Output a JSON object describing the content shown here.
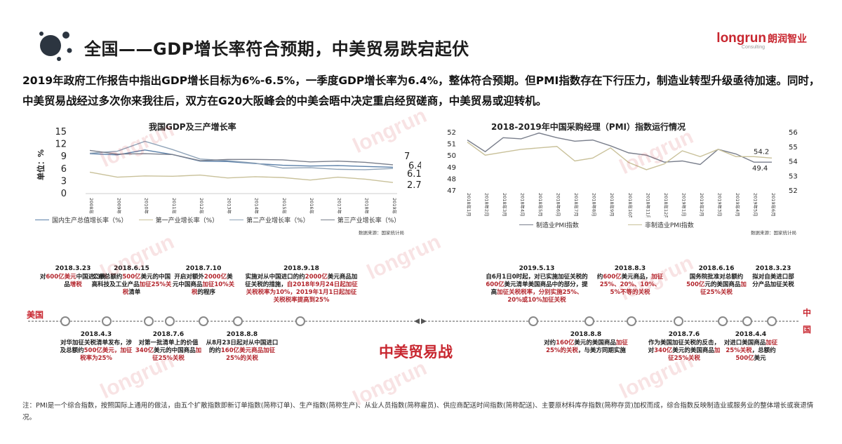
{
  "header": {
    "title": "全国——GDP增长率符合预期，中美贸易跌宕起伏",
    "logo_text": "longrun",
    "logo_cn": "朗润智业",
    "logo_sub": "Consulting"
  },
  "intro": "2019年政府工作报告中指出GDP增长目标为6%-6.5%，一季度GDP增长率为6.4%，整体符合预期。但PMI指数存在下行压力，制造业转型升级亟待加速。同时，中美贸易战经过多次你来我往后，双方在G20大阪峰会的中美会晤中决定重启经贸磋商，中美贸易或迎转机。",
  "gdp_chart": {
    "source": "数据来源：国家统计局"
  },
  "pmi_chart": {
    "source": "数据来源：国家统计局"
  },
  "chart_data": [
    {
      "type": "line",
      "title": "我国GDP及三产增长率",
      "ylabel": "单位：%",
      "ylim": [
        0,
        15
      ],
      "yticks": [
        0,
        3,
        6,
        9,
        12,
        15
      ],
      "categories": [
        "2008年",
        "2009年",
        "2010年",
        "2011年",
        "2012年",
        "2013年",
        "2014年",
        "2015年",
        "2016年",
        "2017年",
        "2018年",
        "2019年"
      ],
      "series": [
        {
          "name": "国内生产总值增长率（%）",
          "color": "#5a7fa8",
          "values": [
            9.7,
            9.4,
            10.6,
            9.5,
            7.9,
            7.8,
            7.3,
            6.9,
            6.7,
            6.8,
            6.6,
            6.4
          ]
        },
        {
          "name": "第一产业增长率（%）",
          "color": "#c9c19a",
          "values": [
            5.2,
            4.0,
            4.3,
            4.2,
            4.5,
            3.8,
            4.1,
            3.9,
            3.3,
            4.0,
            3.5,
            2.7
          ]
        },
        {
          "name": "第二产业增长率（%）",
          "color": "#8fa3b8",
          "values": [
            9.8,
            10.3,
            12.7,
            10.7,
            8.4,
            8.0,
            7.4,
            6.2,
            6.3,
            5.9,
            5.8,
            6.1
          ]
        },
        {
          "name": "第三产业增长率（%）",
          "color": "#7a7f8c",
          "values": [
            10.5,
            9.6,
            9.7,
            9.5,
            8.0,
            8.3,
            8.3,
            8.2,
            7.7,
            7.9,
            7.6,
            7.0
          ]
        }
      ],
      "end_labels": [
        "7",
        "6.4",
        "6.1",
        "2.7"
      ]
    },
    {
      "type": "line",
      "title": "2018-2019年中国采购经理（PMI）指数运行情况",
      "ylim_left": [
        47,
        52
      ],
      "yticks_left": [
        47,
        48,
        49,
        50,
        51,
        52
      ],
      "ylim_right": [
        52,
        56
      ],
      "yticks_right": [
        52,
        53,
        54,
        55,
        56
      ],
      "categories": [
        "2018年1月",
        "2018年2月",
        "2018年3月",
        "2018年4月",
        "2018年5月",
        "2018年6月",
        "2018年7月",
        "2018年8月",
        "2018年9月",
        "2018年10月",
        "2018年11月",
        "2018年12月",
        "2019年1月",
        "2019年2月",
        "2019年3月",
        "2019年4月",
        "2019年5月",
        "2019年6月"
      ],
      "series": [
        {
          "name": "制造业PMI指数",
          "axis": "left",
          "color": "#7a7f8c",
          "values": [
            51.3,
            50.3,
            51.5,
            51.4,
            51.9,
            51.5,
            51.2,
            51.3,
            50.8,
            50.2,
            50.0,
            49.4,
            49.5,
            49.2,
            50.5,
            50.1,
            49.4,
            49.4
          ]
        },
        {
          "name": "非制造业PMI指数",
          "axis": "right",
          "color": "#c9c19a",
          "values": [
            55.3,
            54.4,
            54.6,
            54.8,
            54.9,
            55.0,
            54.0,
            54.2,
            54.9,
            53.9,
            53.4,
            53.8,
            54.7,
            54.3,
            54.8,
            54.3,
            54.3,
            54.2
          ]
        }
      ],
      "end_labels": [
        "54.2",
        "49.4"
      ]
    }
  ],
  "timeline": {
    "us_label": "美国",
    "cn_label": "中国",
    "war_title": "中美贸易战",
    "events": [
      {
        "date": "2018.3.23",
        "parts": [
          [
            "对",
            ""
          ],
          [
            "600亿美元",
            "red"
          ],
          [
            "中国进口商品",
            ""
          ],
          [
            "增税",
            "red"
          ]
        ]
      },
      {
        "date": "2018.4.3",
        "parts": [
          [
            "对华加征关税清单发布，涉及总额约",
            ""
          ],
          [
            "500亿美元，加征税率为25%",
            "red"
          ]
        ]
      },
      {
        "date": "2018.6.15",
        "parts": [
          [
            "公布总额约",
            ""
          ],
          [
            "500亿",
            "red"
          ],
          [
            "美元的中国高科技及工业产品",
            ""
          ],
          [
            "加征25%关税",
            "red"
          ],
          [
            "清单",
            ""
          ]
        ]
      },
      {
        "date": "2018.7.6",
        "parts": [
          [
            "对第一批清单上的价值",
            ""
          ],
          [
            "340亿",
            "red"
          ],
          [
            "美元的中国商品",
            ""
          ],
          [
            "加征25%关税",
            "red"
          ]
        ]
      },
      {
        "date": "2018.7.10",
        "parts": [
          [
            "开启对额外",
            ""
          ],
          [
            "2000亿",
            "red"
          ],
          [
            "美元中国商品",
            ""
          ],
          [
            "加征10%关税",
            "red"
          ],
          [
            "的程序",
            ""
          ]
        ]
      },
      {
        "date": "2018.8.8",
        "parts": [
          [
            "从8月23日起对从中国进口的约",
            ""
          ],
          [
            "160亿美元商品加征25%的关税",
            "red"
          ]
        ]
      },
      {
        "date": "2018.9.18",
        "parts": [
          [
            "实施对从中国进口的约",
            ""
          ],
          [
            "2000亿",
            "red"
          ],
          [
            "美元商品加征关税的措施，",
            ""
          ],
          [
            "自2018年9月24日起加征关税税率为10%，2019年1月1日起加征关税税率提高到25%",
            "red"
          ]
        ]
      },
      {
        "date": "2019.5.13",
        "parts": [
          [
            "自6月1日0时起，对已实施加征关税的",
            ""
          ],
          [
            "600亿",
            "red"
          ],
          [
            "美元清单美国商品中的部分，提高",
            ""
          ],
          [
            "加征关税税率，分别实施25%、20%或10%加征关税",
            "red"
          ]
        ]
      },
      {
        "date": "2018.8.8",
        "parts": [
          [
            "对约",
            ""
          ],
          [
            "160亿",
            "red"
          ],
          [
            "美元的美国商品",
            ""
          ],
          [
            "加征25%的关税",
            "red"
          ],
          [
            "，与美方同期实施",
            ""
          ]
        ]
      },
      {
        "date": "2018.8.3",
        "parts": [
          [
            "约",
            ""
          ],
          [
            "600亿",
            "red"
          ],
          [
            "美元商品，",
            ""
          ],
          [
            "加征25%、20%、10%、5%不等的关税",
            "red"
          ]
        ]
      },
      {
        "date": "2018.7.6",
        "parts": [
          [
            "作为美国加征关税的反击，对",
            ""
          ],
          [
            "340亿",
            "red"
          ],
          [
            "美元的美国商品",
            ""
          ],
          [
            "加征25%关税",
            "red"
          ]
        ]
      },
      {
        "date": "2018.6.16",
        "parts": [
          [
            "国务院批准对总额约",
            ""
          ],
          [
            "500亿",
            "red"
          ],
          [
            "元的美国商品",
            ""
          ],
          [
            "加征25%关税",
            "red"
          ]
        ]
      },
      {
        "date": "2018.4.4",
        "parts": [
          [
            "对进口美国商品",
            ""
          ],
          [
            "加征25%关税",
            "red"
          ],
          [
            "，总额约",
            ""
          ],
          [
            "500亿",
            "red"
          ],
          [
            "美元",
            ""
          ]
        ]
      },
      {
        "date": "2018.3.23",
        "parts": [
          [
            "拟对自美进口部分产品加征关税",
            ""
          ]
        ]
      }
    ]
  },
  "note": "注：PMI是一个综合指数，按照国际上通用的做法，由五个扩散指数即新订单指数(简称订单)、生产指数(简称生产)、从业人员指数(简称雇员)、供应商配送时间指数(简称配送)、主要原材料库存指数(简称存货)加权而成，综合指数反映制造业或服务业的整体增长或衰退情况。",
  "watermark": "longrun"
}
